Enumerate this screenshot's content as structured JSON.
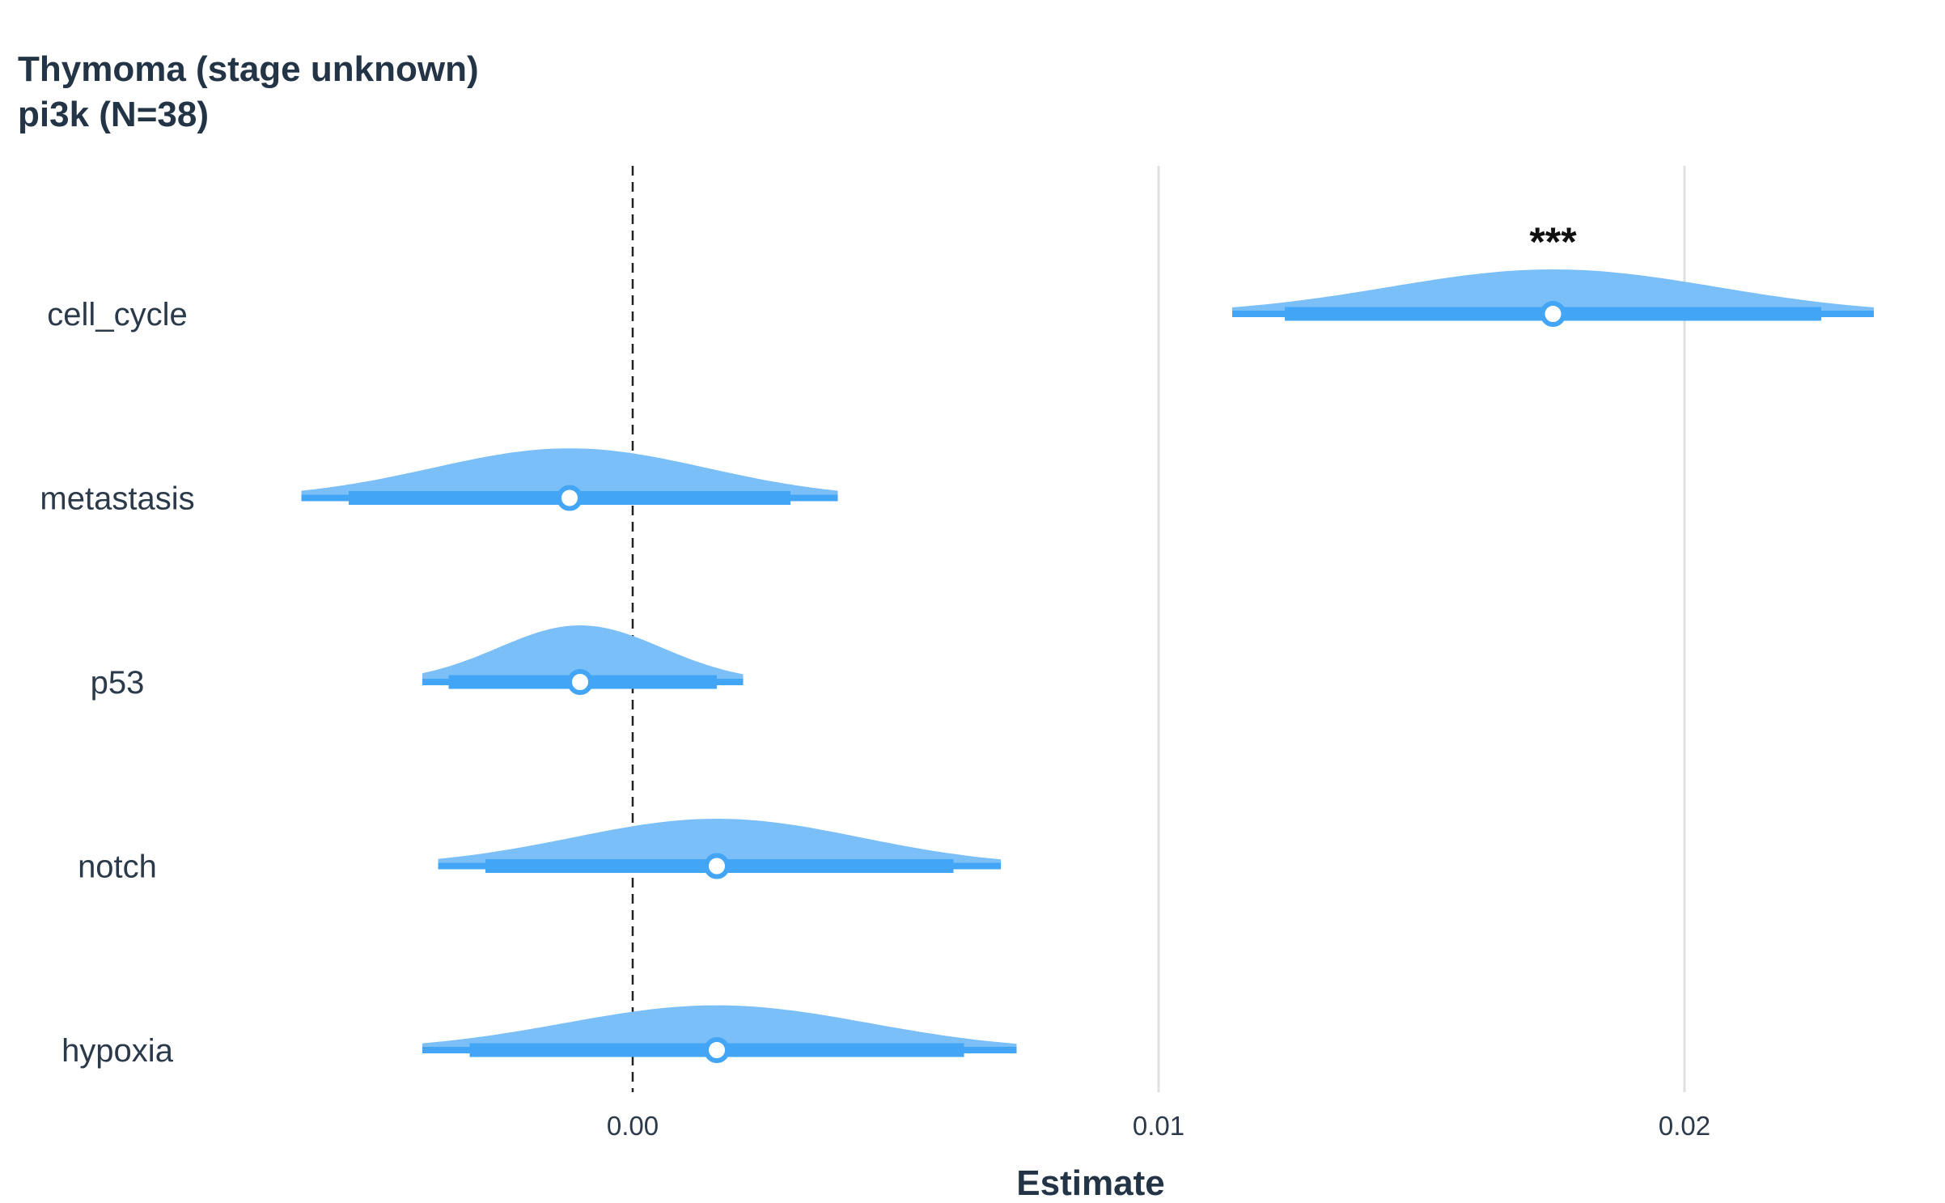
{
  "chart_data": {
    "type": "forest-halfeye",
    "title": "Thymoma (stage unknown)",
    "subtitle": "pi3k (N=38)",
    "xlabel": "Estimate",
    "ylabel": "",
    "xlim": [
      -0.0063,
      0.0239
    ],
    "x_ticks": [
      0.0,
      0.01,
      0.02
    ],
    "x_tick_labels": [
      "0.00",
      "0.01",
      "0.02"
    ],
    "reference_line": 0.0,
    "grid": "vertical major lines",
    "colors": {
      "density": "#7bbff8",
      "interval": "#42a5f5",
      "point_fill": "#ffffff",
      "point_stroke": "#42a5f5"
    },
    "rows": [
      {
        "label": "cell_cycle",
        "estimate": 0.0175,
        "ci66": [
          0.0124,
          0.0226
        ],
        "ci95": [
          0.0114,
          0.0236
        ],
        "significance": "***"
      },
      {
        "label": "metastasis",
        "estimate": -0.0012,
        "ci66": [
          -0.0054,
          0.003
        ],
        "ci95": [
          -0.0063,
          0.0039
        ],
        "significance": ""
      },
      {
        "label": "p53",
        "estimate": -0.001,
        "ci66": [
          -0.0035,
          0.0016
        ],
        "ci95": [
          -0.004,
          0.0021
        ],
        "significance": ""
      },
      {
        "label": "notch",
        "estimate": 0.0016,
        "ci66": [
          -0.0028,
          0.0061
        ],
        "ci95": [
          -0.0037,
          0.007
        ],
        "significance": ""
      },
      {
        "label": "hypoxia",
        "estimate": 0.0016,
        "ci66": [
          -0.0031,
          0.0063
        ],
        "ci95": [
          -0.004,
          0.0073
        ],
        "significance": ""
      }
    ]
  }
}
